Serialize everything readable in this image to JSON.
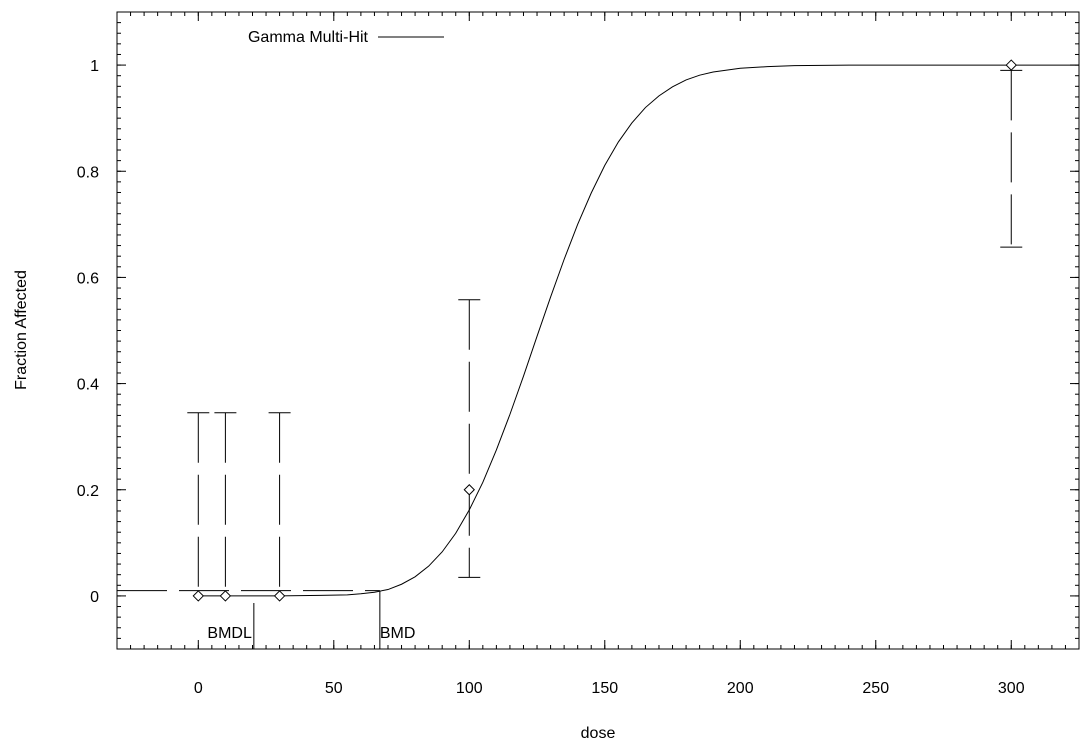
{
  "chart_data": {
    "type": "line",
    "xlabel": "dose",
    "ylabel": "Fraction Affected",
    "xlim": [
      -30,
      325
    ],
    "ylim": [
      -0.1,
      1.1
    ],
    "xticks": [
      0,
      50,
      100,
      150,
      200,
      250,
      300
    ],
    "yticks": [
      0,
      0.2,
      0.4,
      0.6,
      0.8,
      1
    ],
    "legend": {
      "position": "top-left",
      "entries": [
        {
          "label": "Gamma Multi-Hit",
          "style": "solid"
        }
      ]
    },
    "series": [
      {
        "name": "Gamma Multi-Hit",
        "style": "solid",
        "x": [
          0,
          30,
          45,
          55,
          60,
          65,
          70,
          75,
          80,
          85,
          90,
          95,
          100,
          105,
          110,
          115,
          120,
          125,
          130,
          135,
          140,
          145,
          150,
          155,
          160,
          165,
          170,
          175,
          180,
          185,
          190,
          200,
          210,
          220,
          240,
          260,
          300,
          325
        ],
        "y": [
          0,
          0,
          0.001,
          0.002,
          0.004,
          0.007,
          0.012,
          0.022,
          0.036,
          0.056,
          0.083,
          0.118,
          0.162,
          0.214,
          0.275,
          0.342,
          0.414,
          0.489,
          0.563,
          0.634,
          0.7,
          0.759,
          0.811,
          0.855,
          0.891,
          0.92,
          0.942,
          0.959,
          0.972,
          0.981,
          0.987,
          0.994,
          0.997,
          0.999,
          1.0,
          1.0,
          1.0,
          1.0
        ]
      }
    ],
    "observed": [
      {
        "dose": 0,
        "fraction": 0,
        "lower": 0,
        "upper": 0.345
      },
      {
        "dose": 10,
        "fraction": 0,
        "lower": 0,
        "upper": 0.345
      },
      {
        "dose": 30,
        "fraction": 0,
        "lower": 0,
        "upper": 0.345
      },
      {
        "dose": 100,
        "fraction": 0.2,
        "lower": 0.035,
        "upper": 0.558
      },
      {
        "dose": 300,
        "fraction": 1,
        "lower": 0.657,
        "upper": 0.99
      }
    ],
    "bmr_line": {
      "y": 0.01,
      "x_end": 67,
      "style": "dashed"
    },
    "markers": [
      {
        "label": "BMDL",
        "x": 20.5
      },
      {
        "label": "BMD",
        "x": 67
      }
    ]
  }
}
